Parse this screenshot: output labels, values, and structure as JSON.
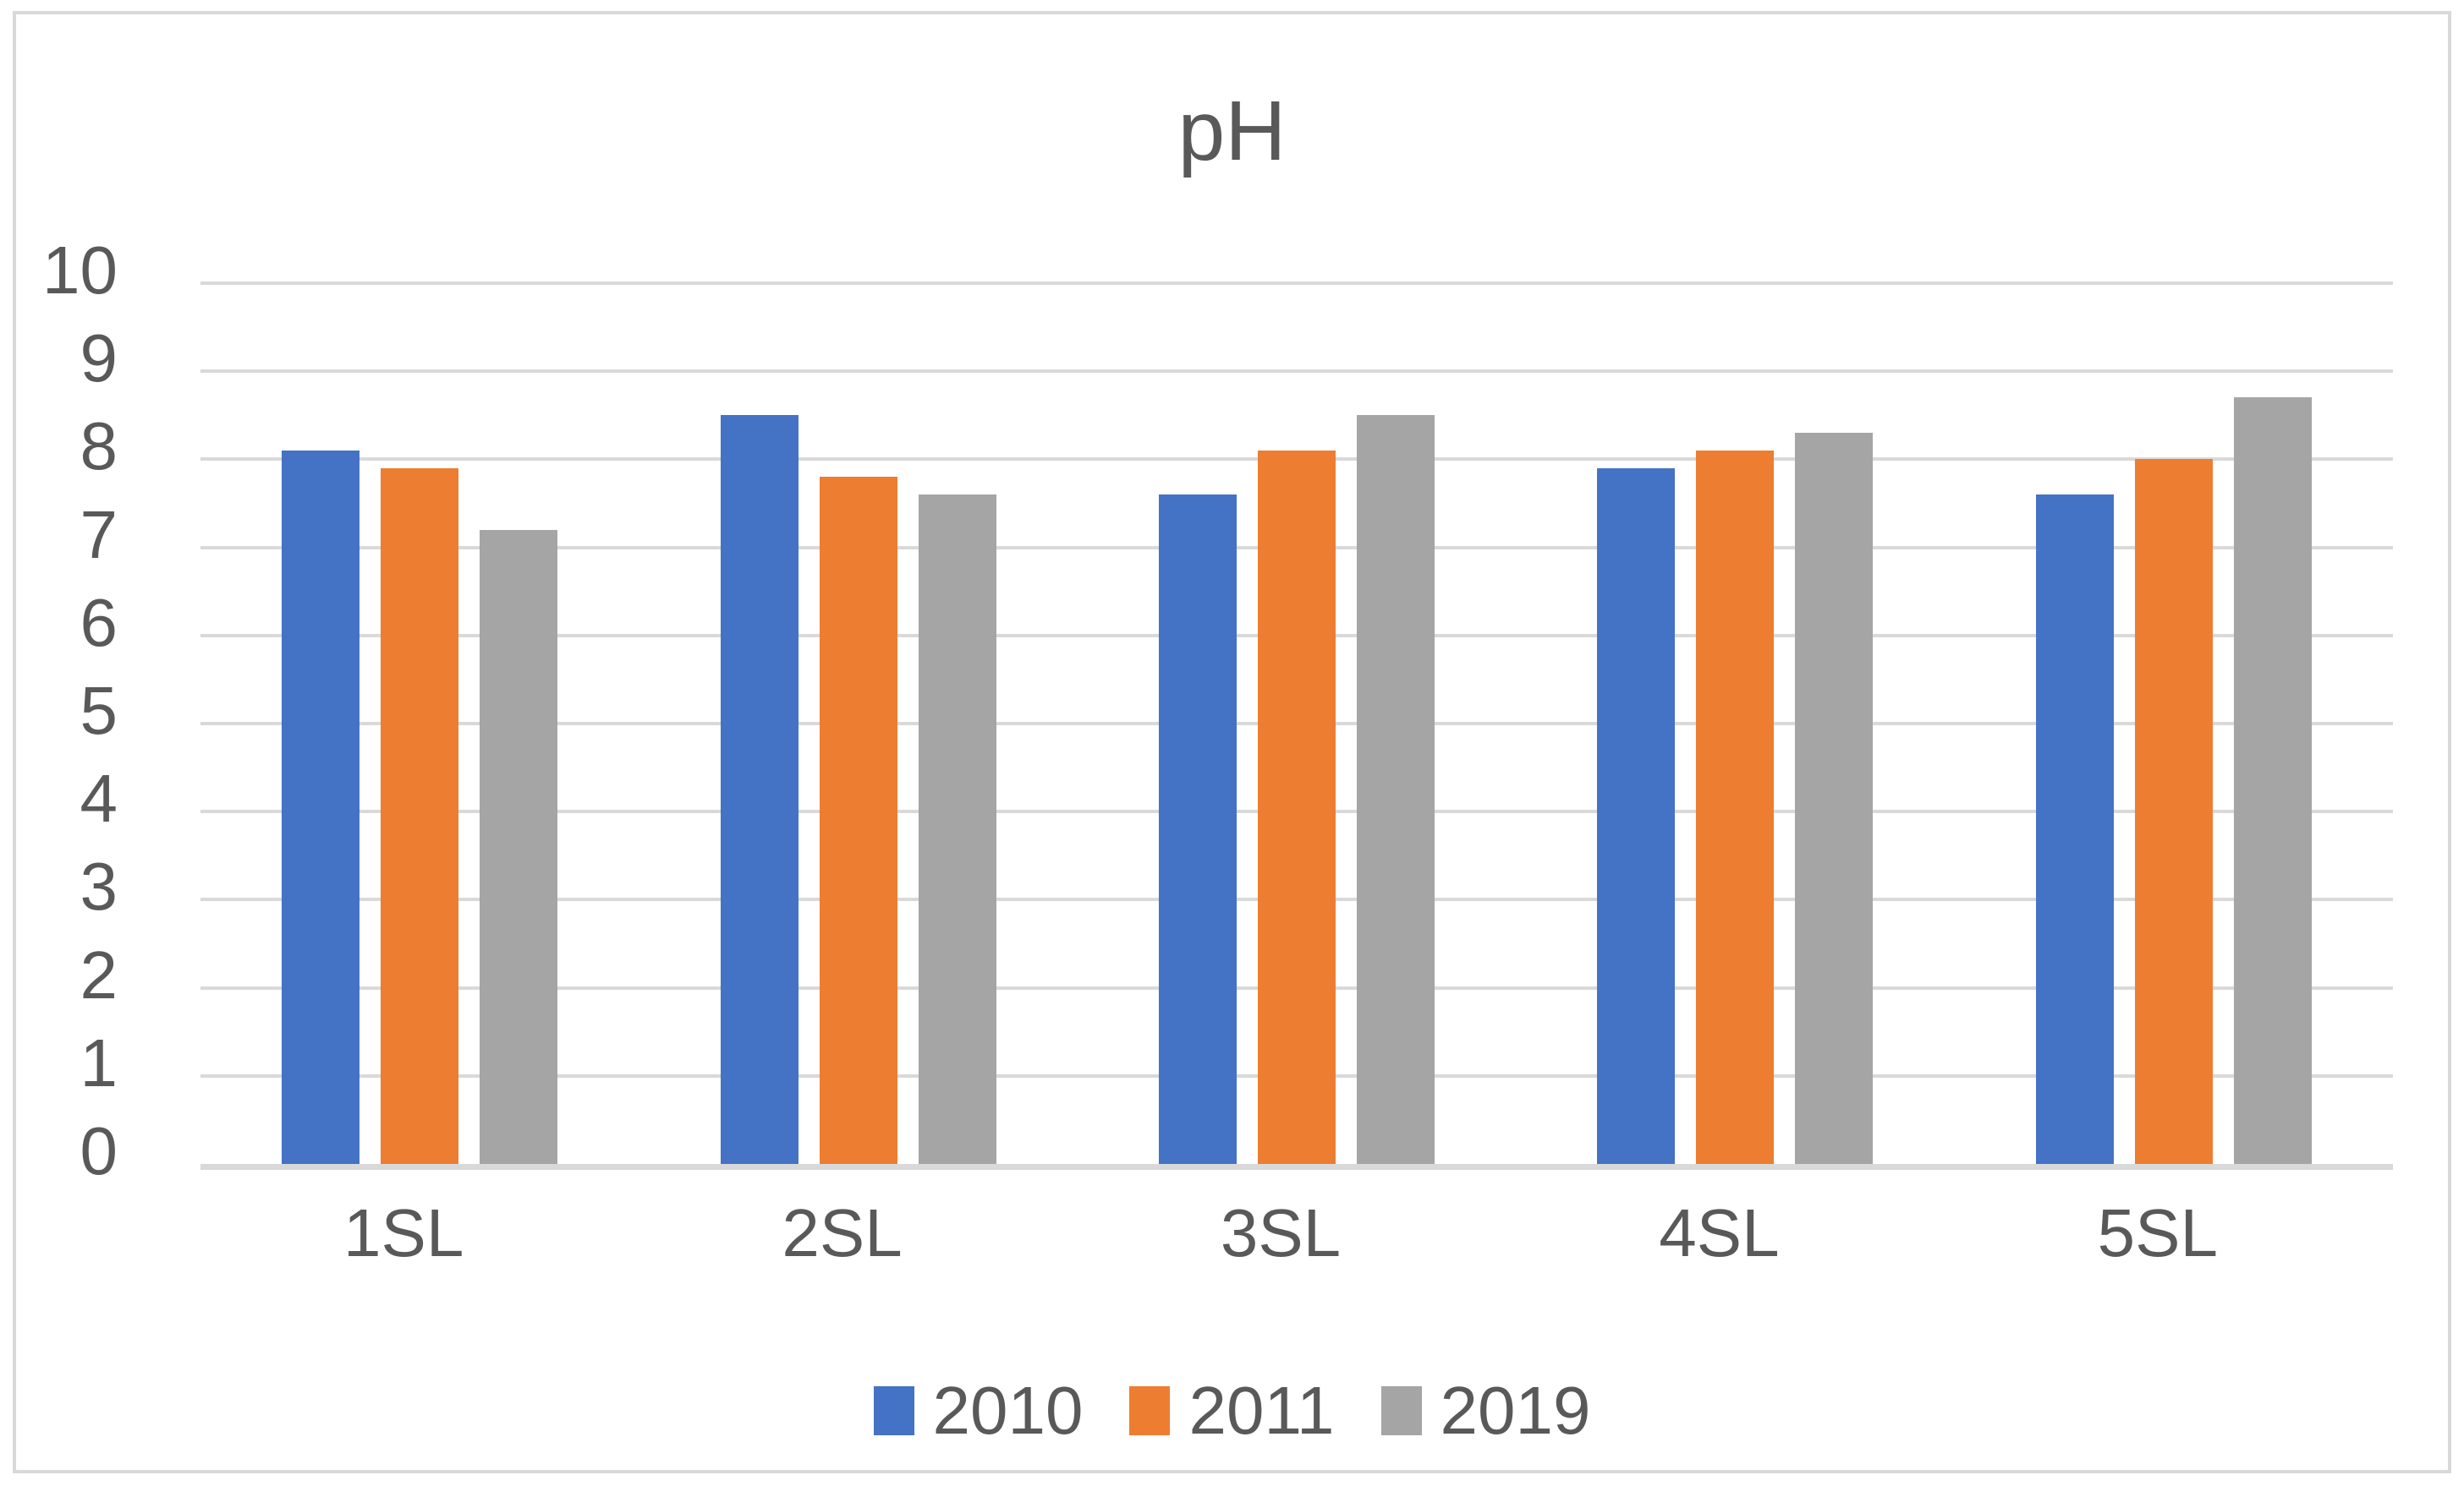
{
  "chart_data": {
    "type": "bar",
    "title": "pH",
    "categories": [
      "1SL",
      "2SL",
      "3SL",
      "4SL",
      "5SL"
    ],
    "series": [
      {
        "name": "2010",
        "color": "#4472C4",
        "values": [
          8.1,
          8.5,
          7.6,
          7.9,
          7.6
        ]
      },
      {
        "name": "2011",
        "color": "#ED7D31",
        "values": [
          7.9,
          7.8,
          8.1,
          8.1,
          8.0
        ]
      },
      {
        "name": "2019",
        "color": "#A5A5A5",
        "values": [
          7.2,
          7.6,
          8.5,
          8.3,
          8.7
        ]
      }
    ],
    "xlabel": "",
    "ylabel": "",
    "ylim": [
      0,
      10
    ],
    "yticks": [
      0,
      1,
      2,
      3,
      4,
      5,
      6,
      7,
      8,
      9,
      10
    ],
    "grid": true,
    "legend_position": "bottom",
    "colors": {
      "text": "#595959",
      "gridline": "#D9D9D9",
      "frame_border": "#D9D9D9",
      "background": "#FFFFFF"
    }
  }
}
